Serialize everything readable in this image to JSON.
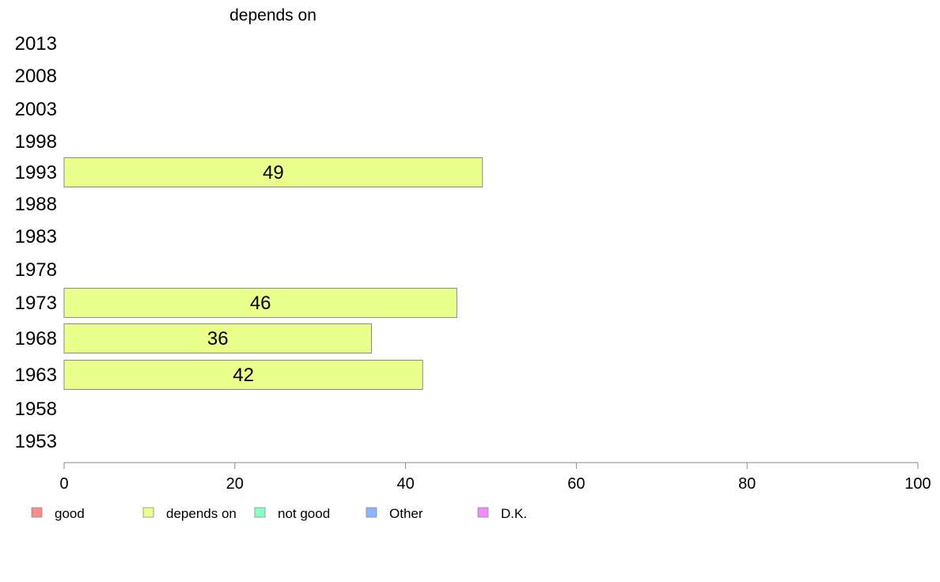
{
  "chart_data": {
    "type": "bar",
    "orientation": "horizontal",
    "title": "depends on",
    "categories": [
      "2013",
      "2008",
      "2003",
      "1998",
      "1993",
      "1988",
      "1983",
      "1978",
      "1973",
      "1968",
      "1963",
      "1958",
      "1953"
    ],
    "series": [
      {
        "name": "depends on",
        "values": [
          null,
          null,
          null,
          null,
          49,
          null,
          null,
          null,
          46,
          36,
          42,
          null,
          null
        ]
      }
    ],
    "xlim": [
      0,
      100
    ],
    "xticks": [
      0,
      20,
      40,
      60,
      80,
      100
    ],
    "grid": false,
    "legend": {
      "placement": "bottom",
      "items": [
        {
          "label": "good",
          "color": "#ff8c8c"
        },
        {
          "label": "depends on",
          "color": "#ebff8c"
        },
        {
          "label": "not good",
          "color": "#8cffc6"
        },
        {
          "label": "Other",
          "color": "#8cb4ff"
        },
        {
          "label": "D.K.",
          "color": "#f08cff"
        }
      ]
    },
    "bar_color": "#ebff8c",
    "bar_border_color": "#8a8a8a"
  }
}
